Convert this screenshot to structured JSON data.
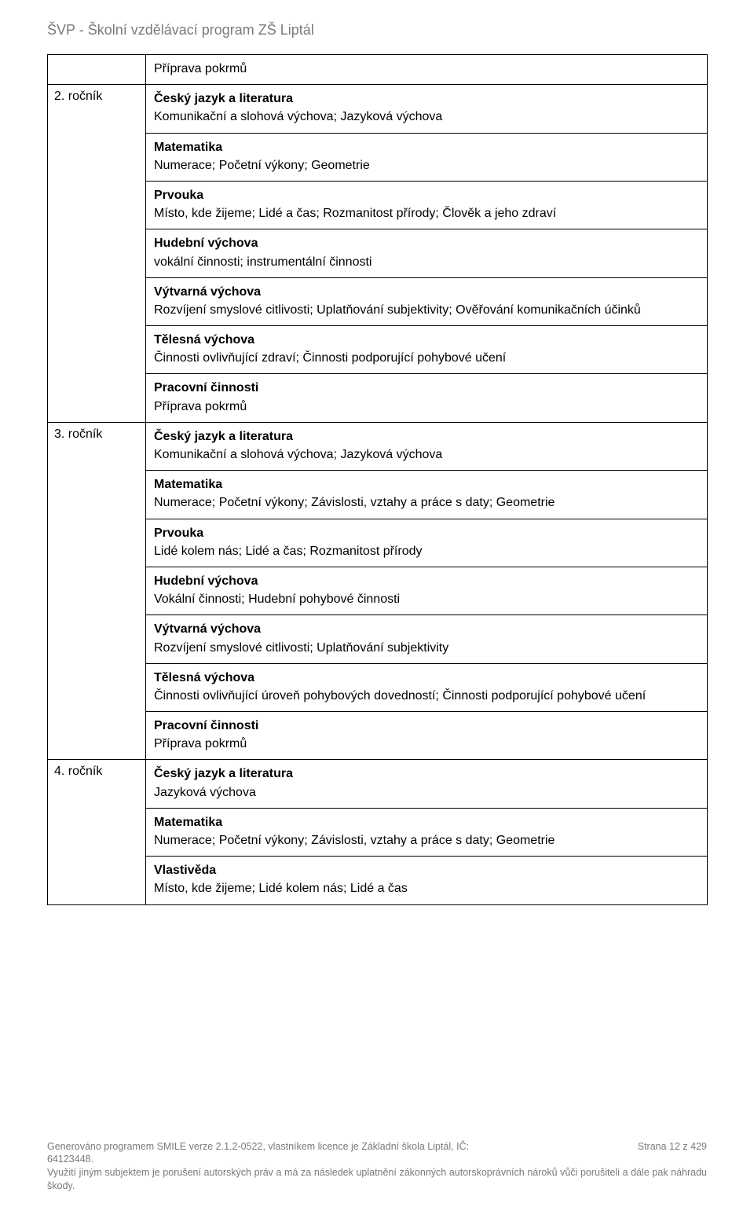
{
  "header": "ŠVP - Školní vzdělávací program ZŠ Liptál",
  "rows": [
    {
      "left": "",
      "subcells": [
        {
          "title": "",
          "body": "Příprava pokrmů"
        }
      ]
    },
    {
      "left": "2. ročník",
      "subcells": [
        {
          "title": "Český jazyk a literatura",
          "body": "Komunikační a slohová výchova; Jazyková výchova"
        },
        {
          "title": "Matematika",
          "body": "Numerace; Početní výkony; Geometrie"
        },
        {
          "title": "Prvouka",
          "body": "Místo, kde žijeme; Lidé a čas; Rozmanitost přírody; Člověk a jeho zdraví"
        },
        {
          "title": "Hudební výchova",
          "body": "vokální činnosti; instrumentální činnosti"
        },
        {
          "title": "Výtvarná výchova",
          "body": "Rozvíjení smyslové citlivosti; Uplatňování subjektivity; Ověřování komunikačních účinků",
          "justify": true
        },
        {
          "title": "Tělesná výchova",
          "body": "Činnosti ovlivňující zdraví; Činnosti podporující pohybové učení"
        },
        {
          "title": "Pracovní činnosti",
          "body": "Příprava pokrmů"
        }
      ]
    },
    {
      "left": "3. ročník",
      "subcells": [
        {
          "title": "Český jazyk a literatura",
          "body": "Komunikační a slohová výchova; Jazyková výchova"
        },
        {
          "title": "Matematika",
          "body": "Numerace; Početní výkony; Závislosti, vztahy a práce s daty; Geometrie"
        },
        {
          "title": "Prvouka",
          "body": "Lidé kolem nás; Lidé a čas; Rozmanitost přírody"
        },
        {
          "title": "Hudební výchova",
          "body": "Vokální činnosti; Hudební pohybové činnosti"
        },
        {
          "title": "Výtvarná výchova",
          "body": "Rozvíjení smyslové citlivosti; Uplatňování subjektivity"
        },
        {
          "title": "Tělesná výchova",
          "body": "Činnosti ovlivňující úroveň pohybových dovedností; Činnosti podporující pohybové učení",
          "justify": true
        },
        {
          "title": "Pracovní činnosti",
          "body": "Příprava pokrmů"
        }
      ]
    },
    {
      "left": "4. ročník",
      "subcells": [
        {
          "title": "Český jazyk a literatura",
          "body": "Jazyková výchova"
        },
        {
          "title": "Matematika",
          "body": "Numerace; Početní výkony; Závislosti, vztahy a práce s daty; Geometrie"
        },
        {
          "title": "Vlastivěda",
          "body": "Místo, kde žijeme; Lidé kolem nás; Lidé a čas"
        }
      ]
    }
  ],
  "footer": {
    "line1_left": "Generováno programem SMILE verze 2.1.2-0522, vlastníkem licence je Základní škola Liptál, IČ:",
    "line1_right": "Strana 12 z 429",
    "line2": "64123448.",
    "line3": "Využití jiným subjektem je porušení autorských práv a má za následek uplatnění zákonných autorskoprávních nároků vůči porušiteli a dále pak náhradu škody."
  }
}
